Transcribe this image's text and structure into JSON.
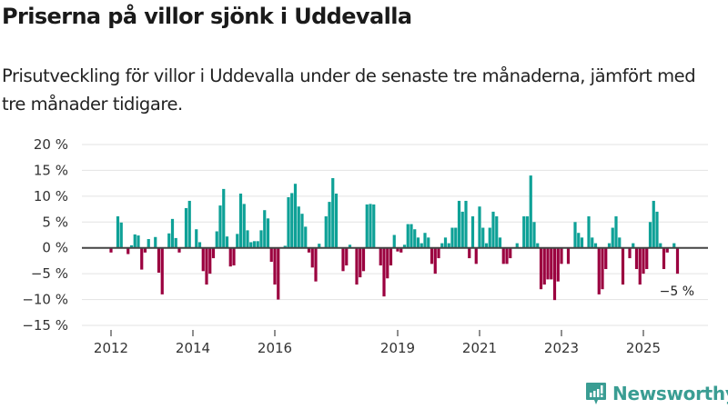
{
  "header": {
    "title": "Priserna på villor sjönk i Uddevalla",
    "subtitle": "Prisutveckling för villor i Uddevalla under de senaste tre månaderna, jämfört med tre månader tidigare."
  },
  "branding": {
    "logo_text": "Newsworthy",
    "logo_icon": "bar-chart-speech-bubble-icon",
    "color": "#3a9d93"
  },
  "chart_data": {
    "type": "bar",
    "title": "Priserna på villor sjönk i Uddevalla",
    "subtitle": "Prisutveckling för villor i Uddevalla under de senaste tre månaderna, jämfört med tre månader tidigare.",
    "xlabel": "",
    "ylabel": "",
    "x_unit": "month index (0 = Jan 2012)",
    "xlim_months": [
      -6,
      174
    ],
    "ylim": [
      -15,
      20
    ],
    "yticks": [
      20,
      15,
      10,
      5,
      0,
      -5,
      -10,
      -15
    ],
    "ytick_labels": [
      "20 %",
      "15 %",
      "10 %",
      "5 %",
      "0 %",
      "−5 %",
      "−10 %",
      "−15 %"
    ],
    "xticks": [
      {
        "month": 0,
        "label": "2012"
      },
      {
        "month": 24,
        "label": "2014"
      },
      {
        "month": 48,
        "label": "2016"
      },
      {
        "month": 84,
        "label": "2019"
      },
      {
        "month": 108,
        "label": "2021"
      },
      {
        "month": 132,
        "label": "2023"
      },
      {
        "month": 156,
        "label": "2025"
      }
    ],
    "grid": true,
    "legend": "none",
    "colors": {
      "positive": "#0ea197",
      "negative": "#9b003f",
      "zero_line": "#444444",
      "grid": "#e3e3e3"
    },
    "annotation": {
      "month": 166,
      "value": -5.0,
      "text": "−5 %"
    },
    "points": [
      {
        "m": 0,
        "v": -0.9
      },
      {
        "m": 2,
        "v": 6.1
      },
      {
        "m": 3,
        "v": 4.9
      },
      {
        "m": 5,
        "v": -1.2
      },
      {
        "m": 6,
        "v": 0.5
      },
      {
        "m": 7,
        "v": 2.6
      },
      {
        "m": 8,
        "v": 2.4
      },
      {
        "m": 9,
        "v": -4.2
      },
      {
        "m": 10,
        "v": -0.9
      },
      {
        "m": 11,
        "v": 1.7
      },
      {
        "m": 13,
        "v": 2.1
      },
      {
        "m": 14,
        "v": -4.8
      },
      {
        "m": 15,
        "v": -9.0
      },
      {
        "m": 17,
        "v": 2.8
      },
      {
        "m": 18,
        "v": 5.6
      },
      {
        "m": 19,
        "v": 1.9
      },
      {
        "m": 20,
        "v": -0.9
      },
      {
        "m": 22,
        "v": 7.7
      },
      {
        "m": 23,
        "v": 9.1
      },
      {
        "m": 25,
        "v": 3.6
      },
      {
        "m": 26,
        "v": 1.1
      },
      {
        "m": 27,
        "v": -4.5
      },
      {
        "m": 28,
        "v": -7.1
      },
      {
        "m": 29,
        "v": -5.0
      },
      {
        "m": 30,
        "v": -2.0
      },
      {
        "m": 31,
        "v": 3.2
      },
      {
        "m": 32,
        "v": 8.2
      },
      {
        "m": 33,
        "v": 11.4
      },
      {
        "m": 34,
        "v": 2.2
      },
      {
        "m": 35,
        "v": -3.6
      },
      {
        "m": 36,
        "v": -3.4
      },
      {
        "m": 37,
        "v": 2.7
      },
      {
        "m": 38,
        "v": 10.5
      },
      {
        "m": 39,
        "v": 8.5
      },
      {
        "m": 40,
        "v": 3.4
      },
      {
        "m": 41,
        "v": 1.1
      },
      {
        "m": 42,
        "v": 1.3
      },
      {
        "m": 43,
        "v": 1.3
      },
      {
        "m": 44,
        "v": 3.4
      },
      {
        "m": 45,
        "v": 7.3
      },
      {
        "m": 46,
        "v": 5.7
      },
      {
        "m": 47,
        "v": -2.7
      },
      {
        "m": 48,
        "v": -7.1
      },
      {
        "m": 49,
        "v": -10.0
      },
      {
        "m": 51,
        "v": 0.4
      },
      {
        "m": 52,
        "v": 9.8
      },
      {
        "m": 53,
        "v": 10.6
      },
      {
        "m": 54,
        "v": 12.4
      },
      {
        "m": 55,
        "v": 8.0
      },
      {
        "m": 56,
        "v": 6.6
      },
      {
        "m": 57,
        "v": 4.1
      },
      {
        "m": 58,
        "v": -0.9
      },
      {
        "m": 59,
        "v": -3.8
      },
      {
        "m": 60,
        "v": -6.5
      },
      {
        "m": 61,
        "v": 0.8
      },
      {
        "m": 63,
        "v": 6.1
      },
      {
        "m": 64,
        "v": 8.9
      },
      {
        "m": 65,
        "v": 13.5
      },
      {
        "m": 66,
        "v": 10.5
      },
      {
        "m": 68,
        "v": -4.5
      },
      {
        "m": 69,
        "v": -3.4
      },
      {
        "m": 70,
        "v": 0.6
      },
      {
        "m": 72,
        "v": -7.1
      },
      {
        "m": 73,
        "v": -5.7
      },
      {
        "m": 74,
        "v": -4.5
      },
      {
        "m": 75,
        "v": 8.4
      },
      {
        "m": 76,
        "v": 8.5
      },
      {
        "m": 77,
        "v": 8.4
      },
      {
        "m": 79,
        "v": -3.4
      },
      {
        "m": 80,
        "v": -9.4
      },
      {
        "m": 81,
        "v": -5.9
      },
      {
        "m": 82,
        "v": -3.4
      },
      {
        "m": 83,
        "v": 2.5
      },
      {
        "m": 84,
        "v": -0.7
      },
      {
        "m": 85,
        "v": -0.9
      },
      {
        "m": 86,
        "v": 0.6
      },
      {
        "m": 87,
        "v": 4.6
      },
      {
        "m": 88,
        "v": 4.6
      },
      {
        "m": 89,
        "v": 3.6
      },
      {
        "m": 90,
        "v": 2.0
      },
      {
        "m": 91,
        "v": 0.9
      },
      {
        "m": 92,
        "v": 2.9
      },
      {
        "m": 93,
        "v": 2.0
      },
      {
        "m": 94,
        "v": -3.1
      },
      {
        "m": 95,
        "v": -5.0
      },
      {
        "m": 96,
        "v": -2.0
      },
      {
        "m": 97,
        "v": 0.9
      },
      {
        "m": 98,
        "v": 2.0
      },
      {
        "m": 99,
        "v": 0.9
      },
      {
        "m": 100,
        "v": 3.9
      },
      {
        "m": 101,
        "v": 3.9
      },
      {
        "m": 102,
        "v": 9.1
      },
      {
        "m": 103,
        "v": 7.0
      },
      {
        "m": 104,
        "v": 9.1
      },
      {
        "m": 105,
        "v": -2.0
      },
      {
        "m": 106,
        "v": 6.1
      },
      {
        "m": 107,
        "v": -3.1
      },
      {
        "m": 108,
        "v": 8.0
      },
      {
        "m": 109,
        "v": 3.9
      },
      {
        "m": 110,
        "v": 0.9
      },
      {
        "m": 111,
        "v": 3.9
      },
      {
        "m": 112,
        "v": 7.0
      },
      {
        "m": 113,
        "v": 6.1
      },
      {
        "m": 114,
        "v": 2.0
      },
      {
        "m": 115,
        "v": -3.1
      },
      {
        "m": 116,
        "v": -3.1
      },
      {
        "m": 117,
        "v": -2.0
      },
      {
        "m": 119,
        "v": 0.9
      },
      {
        "m": 121,
        "v": 6.1
      },
      {
        "m": 122,
        "v": 6.1
      },
      {
        "m": 123,
        "v": 14.0
      },
      {
        "m": 124,
        "v": 5.0
      },
      {
        "m": 125,
        "v": 0.9
      },
      {
        "m": 126,
        "v": -8.0
      },
      {
        "m": 127,
        "v": -7.1
      },
      {
        "m": 128,
        "v": -6.1
      },
      {
        "m": 129,
        "v": -6.1
      },
      {
        "m": 130,
        "v": -10.1
      },
      {
        "m": 131,
        "v": -6.5
      },
      {
        "m": 132,
        "v": -3.1
      },
      {
        "m": 134,
        "v": -3.1
      },
      {
        "m": 136,
        "v": 5.0
      },
      {
        "m": 137,
        "v": 2.9
      },
      {
        "m": 138,
        "v": 2.0
      },
      {
        "m": 140,
        "v": 6.1
      },
      {
        "m": 141,
        "v": 2.0
      },
      {
        "m": 142,
        "v": 0.9
      },
      {
        "m": 143,
        "v": -9.0
      },
      {
        "m": 144,
        "v": -8.0
      },
      {
        "m": 145,
        "v": -4.1
      },
      {
        "m": 146,
        "v": 0.9
      },
      {
        "m": 147,
        "v": 3.9
      },
      {
        "m": 148,
        "v": 6.1
      },
      {
        "m": 149,
        "v": 2.0
      },
      {
        "m": 150,
        "v": -7.1
      },
      {
        "m": 152,
        "v": -2.0
      },
      {
        "m": 153,
        "v": 0.9
      },
      {
        "m": 154,
        "v": -4.1
      },
      {
        "m": 155,
        "v": -7.1
      },
      {
        "m": 156,
        "v": -5.0
      },
      {
        "m": 157,
        "v": -4.1
      },
      {
        "m": 158,
        "v": 5.0
      },
      {
        "m": 159,
        "v": 9.1
      },
      {
        "m": 160,
        "v": 7.0
      },
      {
        "m": 161,
        "v": 0.9
      },
      {
        "m": 162,
        "v": -4.1
      },
      {
        "m": 163,
        "v": -0.9
      },
      {
        "m": 165,
        "v": 0.9
      },
      {
        "m": 166,
        "v": -5.0
      }
    ]
  }
}
